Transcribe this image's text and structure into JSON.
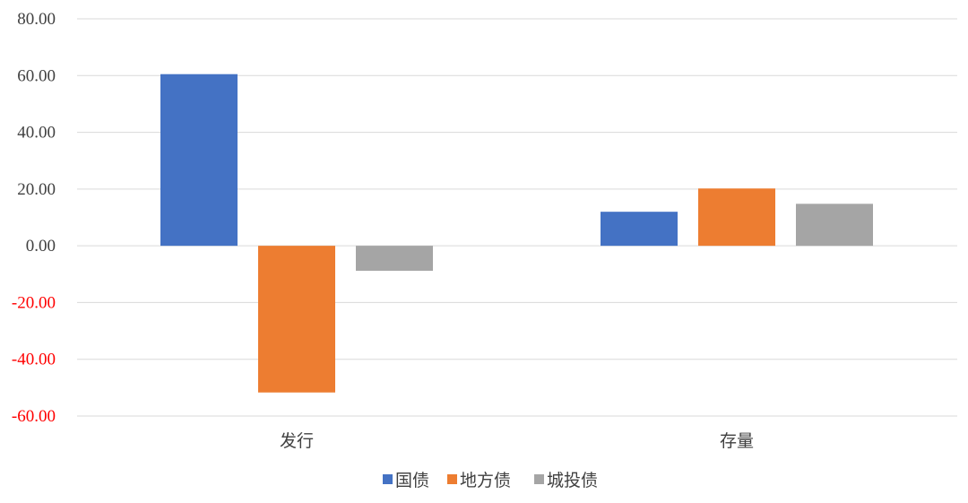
{
  "chart_data": {
    "type": "bar",
    "categories": [
      "发行",
      "存量"
    ],
    "series": [
      {
        "name": "国债",
        "color": "#4472C4",
        "values": [
          60.5,
          12.0
        ]
      },
      {
        "name": "地方债",
        "color": "#ED7D31",
        "values": [
          -51.7,
          20.2
        ]
      },
      {
        "name": "城投债",
        "color": "#A5A5A5",
        "values": [
          -8.8,
          14.8
        ]
      }
    ],
    "ylim": [
      -60,
      80
    ],
    "yticks": [
      "80.00",
      "60.00",
      "40.00",
      "20.00",
      "0.00",
      "-20.00",
      "-40.00",
      "-60.00"
    ],
    "ytick_values": [
      80,
      60,
      40,
      20,
      0,
      -20,
      -40,
      -60
    ],
    "negative_tick_color": "#FF0000",
    "positive_tick_color": "#404040",
    "grid": true,
    "legend_position": "bottom",
    "title": "",
    "xlabel": "",
    "ylabel": ""
  }
}
